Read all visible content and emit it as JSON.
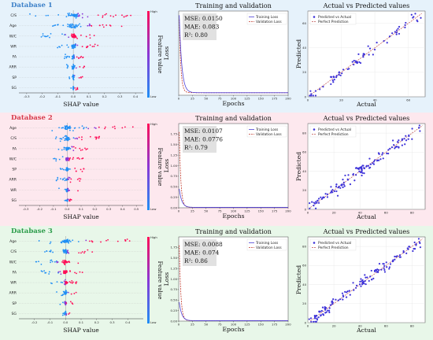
{
  "colors": {
    "db1_bg": "#e6f2fb",
    "db2_bg": "#fde8ee",
    "db3_bg": "#e8f7e9",
    "db1_title": "#3f82c9",
    "db2_title": "#d63c4c",
    "db3_title": "#2c9c4a",
    "shap_low": "#1f8ff5",
    "shap_high": "#ff0d57",
    "train": "#4b3fd6",
    "val": "#c0392b",
    "scatter": "#3d32d9",
    "ref": "#c0504d"
  },
  "databases": [
    {
      "title": "Database 1",
      "shap": {
        "type": "scatter",
        "xlabel": "SHAP value",
        "colorbar_label": "Feature value",
        "cb_high": "High",
        "cb_low": "Low",
        "features": [
          "C/S",
          "Age",
          "W/C",
          "WR",
          "FA",
          "ARR",
          "SP",
          "SG"
        ],
        "xlim": [
          -0.35,
          0.45
        ],
        "xticks": [
          "-0.3",
          "-0.2",
          "-0.1",
          "0.0",
          "0.1",
          "0.2",
          "0.3",
          "0.4"
        ],
        "xtick_values": [
          -0.3,
          -0.2,
          -0.1,
          0.0,
          0.1,
          0.2,
          0.3,
          0.4
        ],
        "spreads": [
          [
            -0.28,
            0.4
          ],
          [
            -0.15,
            0.32
          ],
          [
            -0.22,
            0.15
          ],
          [
            -0.12,
            0.18
          ],
          [
            -0.06,
            0.08
          ],
          [
            -0.05,
            0.1
          ],
          [
            -0.04,
            0.06
          ],
          [
            -0.02,
            0.03
          ]
        ]
      },
      "loss": {
        "type": "line",
        "title": "Training and validation",
        "xlabel": "Epochs",
        "ylabel": "Loss",
        "legend": [
          "Training Loss",
          "Validation Loss"
        ],
        "xlim": [
          0,
          200
        ],
        "ylim": [
          0,
          1.0
        ],
        "xticks": [
          "0",
          "25",
          "50",
          "75",
          "100",
          "125",
          "150",
          "175",
          "200"
        ],
        "xtick_values": [
          0,
          25,
          50,
          75,
          100,
          125,
          150,
          175,
          200
        ],
        "yticks": [],
        "train_start": 0.95,
        "train_end": 0.03,
        "val_start": 0.9,
        "val_end": 0.03,
        "metrics": [
          "MSE: 0.0150",
          "MAE: 0.083",
          "R²: 0.80"
        ]
      },
      "scatter": {
        "type": "scatter",
        "title": "Actual vs Predicted values",
        "xlabel": "Actual",
        "ylabel": "Predicted",
        "legend": [
          "Predicted vs Actual",
          "Perfect Prediction"
        ],
        "xlim": [
          0,
          70
        ],
        "ylim": [
          0,
          70
        ],
        "xticks": [
          "0",
          "20",
          "40",
          "60"
        ],
        "xtick_values": [
          0,
          20,
          40,
          60
        ],
        "yticks": [
          "0",
          "20",
          "40",
          "60"
        ],
        "ytick_values": [
          0,
          20,
          40,
          60
        ],
        "n_points": 70
      }
    },
    {
      "title": "Database 2",
      "shap": {
        "type": "scatter",
        "xlabel": "SHAP value",
        "colorbar_label": "Feature value",
        "cb_high": "High",
        "cb_low": "Low",
        "features": [
          "Age",
          "C/S",
          "FA",
          "W/C",
          "SP",
          "ARR",
          "WR",
          "SG"
        ],
        "xlim": [
          -0.35,
          0.55
        ],
        "xticks": [
          "-0.3",
          "-0.2",
          "-0.1",
          "0.0",
          "0.1",
          "0.2",
          "0.3",
          "0.4",
          "0.5"
        ],
        "xtick_values": [
          -0.3,
          -0.2,
          -0.1,
          0.0,
          0.1,
          0.2,
          0.3,
          0.4,
          0.5
        ],
        "spreads": [
          [
            -0.12,
            0.48
          ],
          [
            -0.12,
            0.25
          ],
          [
            -0.08,
            0.15
          ],
          [
            -0.12,
            0.12
          ],
          [
            -0.05,
            0.12
          ],
          [
            -0.08,
            0.1
          ],
          [
            -0.06,
            0.08
          ],
          [
            -0.02,
            0.03
          ]
        ]
      },
      "loss": {
        "type": "line",
        "title": "Training and validation",
        "xlabel": "Epochs",
        "ylabel": "Loss",
        "legend": [
          "Training Loss",
          "Validation Loss"
        ],
        "xlim": [
          0,
          200
        ],
        "ylim": [
          0,
          2.0
        ],
        "xticks": [
          "0",
          "25",
          "50",
          "75",
          "100",
          "125",
          "150",
          "175",
          "200"
        ],
        "xtick_values": [
          0,
          25,
          50,
          75,
          100,
          125,
          150,
          175,
          200
        ],
        "yticks": [
          "0.00",
          "0.25",
          "0.50",
          "0.75",
          "1.00",
          "1.25",
          "1.50",
          "1.75"
        ],
        "ytick_values": [
          0.0,
          0.25,
          0.5,
          0.75,
          1.0,
          1.25,
          1.5,
          1.75
        ],
        "train_start": 0.45,
        "train_end": 0.01,
        "val_start": 1.8,
        "val_end": 0.01,
        "metrics": [
          "MSE: 0.0107",
          "MAE: 0.0776",
          "R²: 0.79"
        ]
      },
      "scatter": {
        "type": "scatter",
        "title": "Actual vs Predicted values",
        "xlabel": "Actual",
        "ylabel": "Predicted",
        "legend": [
          "Predicted vs Actual",
          "Perfect Prediction"
        ],
        "xlim": [
          0,
          90
        ],
        "ylim": [
          0,
          90
        ],
        "xticks": [
          "0",
          "20",
          "40",
          "60",
          "80"
        ],
        "xtick_values": [
          0,
          20,
          40,
          60,
          80
        ],
        "yticks": [
          "0",
          "20",
          "40",
          "60",
          "80"
        ],
        "ytick_values": [
          0,
          20,
          40,
          60,
          80
        ],
        "n_points": 130
      }
    },
    {
      "title": "Database 3",
      "shap": {
        "type": "scatter",
        "xlabel": "SHAP value",
        "colorbar_label": "Feature value",
        "cb_high": "High",
        "cb_low": "Low",
        "features": [
          "Age",
          "C/S",
          "W/C",
          "FA",
          "WR",
          "ARR",
          "SP",
          "SG"
        ],
        "xlim": [
          -0.3,
          0.5
        ],
        "xticks": [
          "-0.2",
          "-0.1",
          "0.0",
          "0.1",
          "0.2",
          "0.3",
          "0.4"
        ],
        "xtick_values": [
          -0.2,
          -0.1,
          0.0,
          0.1,
          0.2,
          0.3,
          0.4
        ],
        "spreads": [
          [
            -0.18,
            0.42
          ],
          [
            -0.15,
            0.2
          ],
          [
            -0.2,
            0.12
          ],
          [
            -0.18,
            0.12
          ],
          [
            -0.1,
            0.08
          ],
          [
            -0.06,
            0.1
          ],
          [
            -0.05,
            0.05
          ],
          [
            -0.02,
            0.03
          ]
        ]
      },
      "loss": {
        "type": "line",
        "title": "Training and validation",
        "xlabel": "Epochs",
        "ylabel": "Loss",
        "legend": [
          "Training Loss",
          "Validation Loss"
        ],
        "xlim": [
          0,
          200
        ],
        "ylim": [
          0,
          2.0
        ],
        "xticks": [
          "0",
          "25",
          "50",
          "75",
          "100",
          "125",
          "150",
          "175",
          "200"
        ],
        "xtick_values": [
          0,
          25,
          50,
          75,
          100,
          125,
          150,
          175,
          200
        ],
        "yticks": [
          "0.00",
          "0.25",
          "0.50",
          "0.75",
          "1.00",
          "1.25",
          "1.50",
          "1.75"
        ],
        "ytick_values": [
          0.0,
          0.25,
          0.5,
          0.75,
          1.0,
          1.25,
          1.5,
          1.75
        ],
        "train_start": 0.45,
        "train_end": 0.01,
        "val_start": 1.8,
        "val_end": 0.01,
        "metrics": [
          "MSE: 0.0088",
          "MAE: 0.074",
          "R²: 0.86"
        ]
      },
      "scatter": {
        "type": "scatter",
        "title": "Actual vs Predicted values",
        "xlabel": "Actual",
        "ylabel": "Predicted",
        "legend": [
          "Predicted vs Actual",
          "Perfect Prediction"
        ],
        "xlim": [
          0,
          90
        ],
        "ylim": [
          0,
          90
        ],
        "xticks": [
          "0",
          "20",
          "40",
          "60",
          "80"
        ],
        "xtick_values": [
          0,
          20,
          40,
          60,
          80
        ],
        "yticks": [
          "0",
          "20",
          "40",
          "60",
          "80"
        ],
        "ytick_values": [
          0,
          20,
          40,
          60,
          80
        ],
        "n_points": 130
      }
    }
  ]
}
